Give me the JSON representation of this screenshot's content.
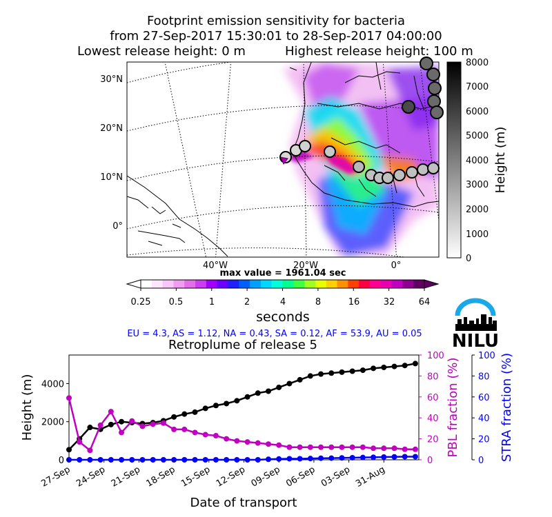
{
  "header": {
    "title_line1": "Footprint emission sensitivity for bacteria",
    "title_line2": "from 27-Sep-2017 15:30:01 to 28-Sep-2017 04:00:00",
    "lowest_release": "Lowest release height: 0 m",
    "highest_release": "Highest release height: 100 m"
  },
  "map": {
    "lat_labels": [
      "30°N",
      "20°N",
      "10°N",
      "0°"
    ],
    "lon_labels": [
      "40°W",
      "20°W",
      "0°"
    ],
    "max_value_text": "max value = 1961.04 sec",
    "height_colorbar": {
      "label": "Height (m)",
      "ticks": [
        "8000",
        "7000",
        "6000",
        "5000",
        "4000",
        "3000",
        "2000",
        "1000",
        "0"
      ]
    },
    "seconds_colorbar": {
      "label": "seconds",
      "ticks": [
        "0.25",
        "0.5",
        "1",
        "2",
        "4",
        "8",
        "16",
        "32",
        "64"
      ],
      "colors": [
        "#ffffff",
        "#fde6fd",
        "#f8c6f8",
        "#f09cf0",
        "#e36ee8",
        "#cc3cf0",
        "#a000ff",
        "#6a00ff",
        "#2020ff",
        "#005eff",
        "#00a0ff",
        "#00d8ff",
        "#00ffd8",
        "#00ff90",
        "#40ff40",
        "#a0ff20",
        "#e8ff00",
        "#ffd000",
        "#ff9000",
        "#ff4000",
        "#ff0040",
        "#ff0090",
        "#e800b0",
        "#c000c0",
        "#900090",
        "#600060"
      ]
    }
  },
  "logo": {
    "text": "NILU",
    "arc_color": "#19a9e8"
  },
  "fractions_text": "EU = 4.3,  AS = 1.12,  NA = 0.43,  SA = 0.12,  AF = 53.9,  AU = 0.05",
  "colors": {
    "height": "#000000",
    "pbl": "#bf00bf",
    "stra": "#0000ff",
    "fractions_text": "#0000ff"
  },
  "chart_data": {
    "type": "line",
    "title": "Retroplume of release 5",
    "xlabel": "Date of transport",
    "ylabel": "Height (m)",
    "y2label": "PBL fraction (%)",
    "y3label": "STRA fraction (%)",
    "x_tick_labels": [
      "27-Sep",
      "24-Sep",
      "21-Sep",
      "18-Sep",
      "15-Sep",
      "12-Sep",
      "09-Sep",
      "06-Sep",
      "03-Sep",
      "31-Aug"
    ],
    "x_days_back": [
      0,
      3,
      6,
      9,
      12,
      15,
      18,
      21,
      24,
      27
    ],
    "xlim": [
      0,
      30
    ],
    "ylim": [
      0,
      5500
    ],
    "y_ticks": [
      "0",
      "2000",
      "4000"
    ],
    "y2lim": [
      0,
      100
    ],
    "y2_ticks": [
      "0",
      "20",
      "40",
      "60",
      "80",
      "100"
    ],
    "y3lim": [
      0,
      100
    ],
    "y3_ticks": [
      "0",
      "20",
      "40",
      "60",
      "80",
      "100"
    ],
    "series": [
      {
        "name": "Height",
        "axis": "left",
        "x": [
          0,
          0.9,
          1.8,
          2.7,
          3.6,
          4.5,
          5.4,
          6.3,
          7.2,
          8.1,
          9,
          9.9,
          10.8,
          11.7,
          12.6,
          13.5,
          14.4,
          15.3,
          16.2,
          17.1,
          18,
          18.9,
          19.8,
          20.7,
          21.6,
          22.5,
          23.4,
          24.3,
          25.2,
          26.1,
          27,
          27.9,
          28.8,
          29.7
        ],
        "values": [
          530,
          1100,
          1700,
          1600,
          1850,
          2000,
          1950,
          1900,
          1950,
          2050,
          2250,
          2400,
          2500,
          2700,
          2850,
          2950,
          3100,
          3300,
          3500,
          3600,
          3800,
          4000,
          4200,
          4400,
          4500,
          4550,
          4600,
          4650,
          4700,
          4800,
          4850,
          4900,
          4950,
          5050
        ]
      },
      {
        "name": "PBL fraction",
        "axis": "right",
        "x": [
          0,
          0.9,
          1.8,
          2.7,
          3.6,
          4.5,
          5.4,
          6.3,
          7.2,
          8.1,
          9,
          9.9,
          10.8,
          11.7,
          12.6,
          13.5,
          14.4,
          15.3,
          16.2,
          17.1,
          18,
          18.9,
          19.8,
          20.7,
          21.6,
          22.5,
          23.4,
          24.3,
          25.2,
          26.1,
          27,
          27.9,
          28.8,
          29.7
        ],
        "values": [
          59,
          17,
          9,
          33,
          46,
          26,
          37,
          32,
          34,
          35,
          29,
          29,
          26,
          24,
          23,
          20,
          18,
          17,
          16,
          15,
          14,
          12,
          12,
          12,
          12,
          12,
          12,
          12,
          12,
          11,
          11,
          11,
          10,
          10
        ]
      },
      {
        "name": "STRA fraction",
        "axis": "right",
        "x": [
          0,
          0.9,
          1.8,
          2.7,
          3.6,
          4.5,
          5.4,
          6.3,
          7.2,
          8.1,
          9,
          9.9,
          10.8,
          11.7,
          12.6,
          13.5,
          14.4,
          15.3,
          16.2,
          17.1,
          18,
          18.9,
          19.8,
          20.7,
          21.6,
          22.5,
          23.4,
          24.3,
          25.2,
          26.1,
          27,
          27.9,
          28.8,
          29.7
        ],
        "values": [
          0,
          0,
          0,
          0,
          0,
          0,
          0,
          0,
          0,
          0,
          0,
          0,
          0,
          0,
          0,
          0,
          0,
          0,
          0,
          0.5,
          0.8,
          1,
          1,
          1.2,
          1.5,
          1.6,
          1.8,
          2,
          2.2,
          2.4,
          2.6,
          2.8,
          3,
          3
        ]
      }
    ]
  }
}
